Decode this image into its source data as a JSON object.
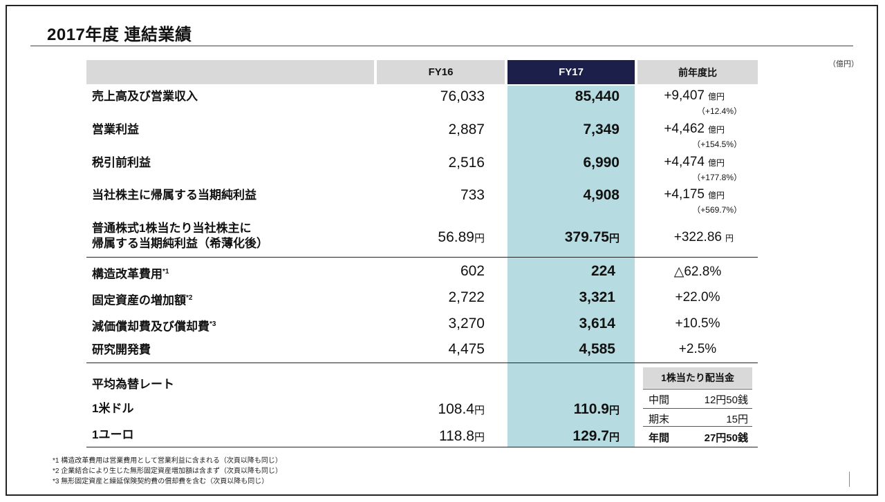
{
  "title": "2017年度 連結業績",
  "unit_note": "（億円）",
  "headers": {
    "fy16": "FY16",
    "fy17": "FY17",
    "yoy": "前年度比"
  },
  "rows": [
    {
      "label": "売上高及び営業収入",
      "fy16": "76,033",
      "fy17": "85,440",
      "yoy": "+9,407",
      "yoy_unit": "億円",
      "yoy_pct": "（+12.4%）"
    },
    {
      "label": "営業利益",
      "fy16": "2,887",
      "fy17": "7,349",
      "yoy": "+4,462",
      "yoy_unit": "億円",
      "yoy_pct": "（+154.5%）"
    },
    {
      "label": "税引前利益",
      "fy16": "2,516",
      "fy17": "6,990",
      "yoy": "+4,474",
      "yoy_unit": "億円",
      "yoy_pct": "（+177.8%）"
    },
    {
      "label": "当社株主に帰属する当期純利益",
      "fy16": "733",
      "fy17": "4,908",
      "yoy": "+4,175",
      "yoy_unit": "億円",
      "yoy_pct": "（+569.7%）"
    },
    {
      "label_line1": "普通株式1株当たり当社株主に",
      "label_line2": "帰属する当期純利益（希薄化後）",
      "fy16": "56.89",
      "fy16_unit": "円",
      "fy17": "379.75",
      "fy17_unit": "円",
      "yoy": "+322.86",
      "yoy_unit": "円"
    }
  ],
  "rows2": [
    {
      "label": "構造改革費用",
      "note": "*1",
      "fy16": "602",
      "fy17": "224",
      "yoy": "△62.8%"
    },
    {
      "label": "固定資産の増加額",
      "note": "*2",
      "fy16": "2,722",
      "fy17": "3,321",
      "yoy": "+22.0%"
    },
    {
      "label": "減価償却費及び償却費",
      "note": "*3",
      "fy16": "3,270",
      "fy17": "3,614",
      "yoy": "+10.5%"
    },
    {
      "label": "研究開発費",
      "note": "",
      "fy16": "4,475",
      "fy17": "4,585",
      "yoy": "+2.5%"
    }
  ],
  "fx": {
    "heading": "平均為替レート",
    "usd": {
      "label": "1米ドル",
      "fy16": "108.4",
      "fy17": "110.9",
      "unit": "円"
    },
    "eur": {
      "label": "1ユーロ",
      "fy16": "118.8",
      "fy17": "129.7",
      "unit": "円"
    }
  },
  "dividend": {
    "heading": "1株当たり配当金",
    "rows": [
      {
        "k": "中間",
        "v": "12円50銭"
      },
      {
        "k": "期末",
        "v": "15円"
      },
      {
        "k": "年間",
        "v": "27円50銭"
      }
    ]
  },
  "footnotes": [
    "*1 構造改革費用は営業費用として営業利益に含まれる（次頁以降も同じ）",
    "*2 企業結合により生じた無形固定資産増加額は含まず（次頁以降も同じ）",
    "*3 無形固定資産と繰延保険契約費の償却費を含む（次頁以降も同じ）"
  ]
}
